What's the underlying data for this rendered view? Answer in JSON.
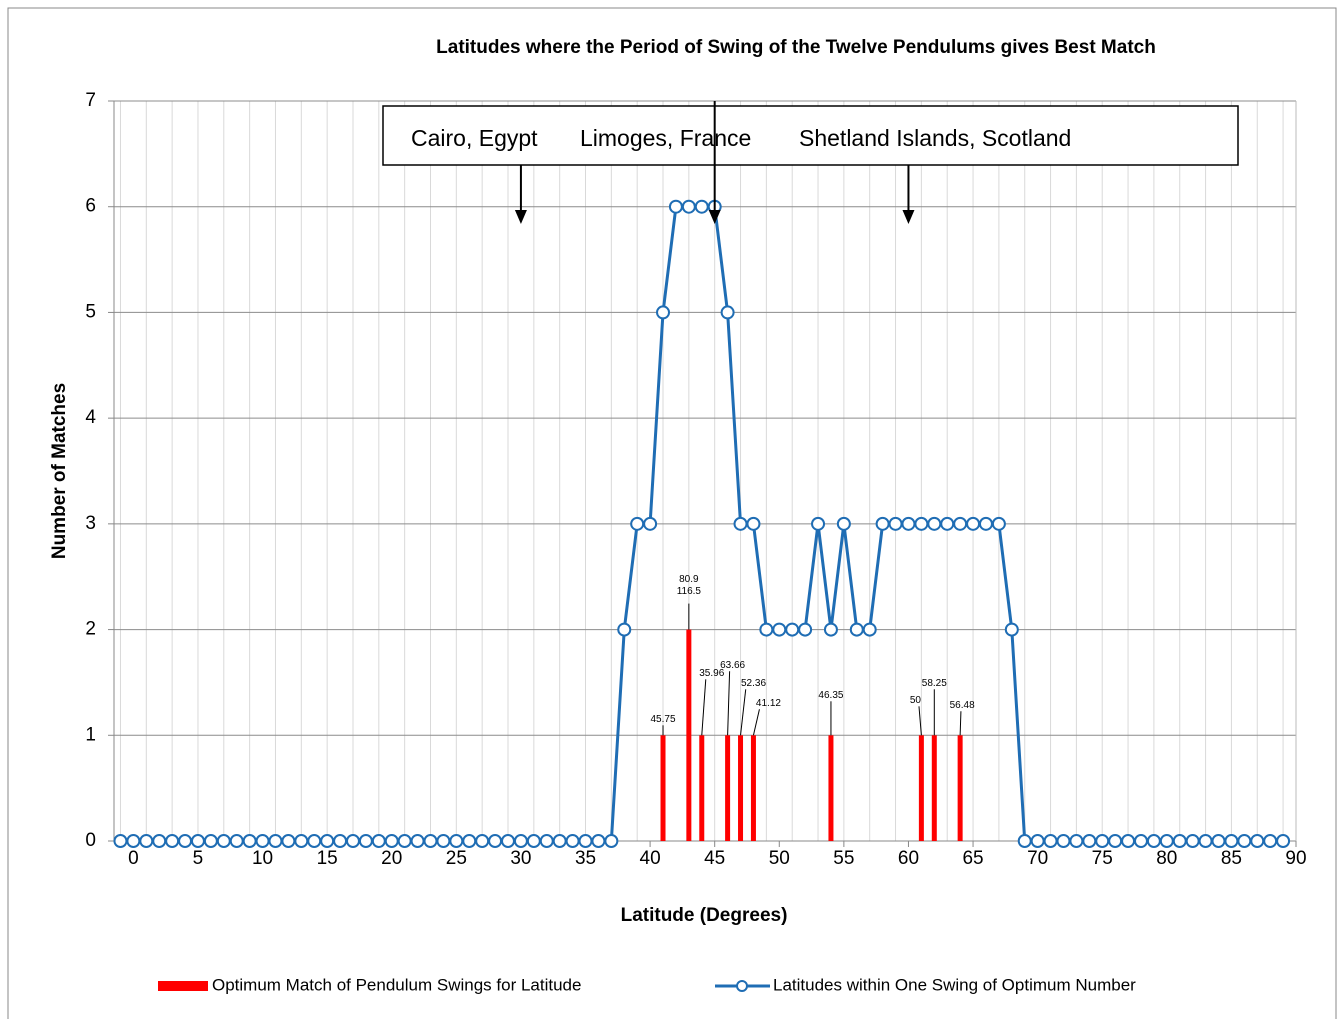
{
  "chart_data": {
    "type": "line",
    "title": "Latitudes where the Period of Swing of the Twelve Pendulums gives Best Match",
    "x_label": "Latitude (Degrees)",
    "y_label": "Number of Matches",
    "xlim": [
      -1.5,
      90
    ],
    "ylim": [
      0,
      7
    ],
    "xticks": [
      0,
      5,
      10,
      15,
      20,
      25,
      30,
      35,
      40,
      45,
      50,
      55,
      60,
      65,
      70,
      75,
      80,
      85,
      90
    ],
    "yticks": [
      0,
      1,
      2,
      3,
      4,
      5,
      6,
      7
    ],
    "grid": true,
    "x_minor_grid": {
      "start": -1,
      "step": 2
    },
    "legend": "bottom",
    "series": [
      {
        "name": "Optimum Match of Pendulum Swings for Latitude",
        "type": "bar",
        "color": "#ff0000",
        "x": [
          41,
          43,
          44,
          46,
          47,
          48,
          54,
          61,
          62,
          64
        ],
        "values": [
          1,
          2,
          1,
          1,
          1,
          1,
          1,
          1,
          1,
          1
        ],
        "bar_labels": [
          [
            "45.75"
          ],
          [
            "80.9",
            "116.5"
          ],
          [
            "35.96"
          ],
          [
            "63.66"
          ],
          [
            "52.36"
          ],
          [
            "41.12"
          ],
          [
            "46.35"
          ],
          [
            "50"
          ],
          [
            "58.25"
          ],
          [
            "56.48"
          ]
        ]
      },
      {
        "name": "Latitudes within One Swing of Optimum Number",
        "type": "line",
        "color": "#1f6db4",
        "x": [
          -1,
          0,
          1,
          2,
          3,
          4,
          5,
          6,
          7,
          8,
          9,
          10,
          11,
          12,
          13,
          14,
          15,
          16,
          17,
          18,
          19,
          20,
          21,
          22,
          23,
          24,
          25,
          26,
          27,
          28,
          29,
          30,
          31,
          32,
          33,
          34,
          35,
          36,
          37,
          38,
          39,
          40,
          41,
          42,
          43,
          44,
          45,
          46,
          47,
          48,
          49,
          50,
          51,
          52,
          53,
          54,
          55,
          56,
          57,
          58,
          59,
          60,
          61,
          62,
          63,
          64,
          65,
          66,
          67,
          68,
          69,
          70,
          71,
          72,
          73,
          74,
          75,
          76,
          77,
          78,
          79,
          80,
          81,
          82,
          83,
          84,
          85,
          86,
          87,
          88,
          89
        ],
        "values": [
          0,
          0,
          0,
          0,
          0,
          0,
          0,
          0,
          0,
          0,
          0,
          0,
          0,
          0,
          0,
          0,
          0,
          0,
          0,
          0,
          0,
          0,
          0,
          0,
          0,
          0,
          0,
          0,
          0,
          0,
          0,
          0,
          0,
          0,
          0,
          0,
          0,
          0,
          0,
          2,
          3,
          3,
          5,
          6,
          6,
          6,
          6,
          5,
          3,
          3,
          2,
          2,
          2,
          2,
          3,
          2,
          3,
          2,
          2,
          3,
          3,
          3,
          3,
          3,
          3,
          3,
          3,
          3,
          3,
          2,
          0,
          0,
          0,
          0,
          0,
          0,
          0,
          0,
          0,
          0,
          0,
          0,
          0,
          0,
          0,
          0,
          0,
          0,
          0,
          0,
          0
        ]
      }
    ],
    "annotations": [
      {
        "text": "Cairo, Egypt",
        "x": 30
      },
      {
        "text": "Limoges, France",
        "x": 45
      },
      {
        "text": "Shetland Islands, Scotland",
        "x": 60
      }
    ]
  }
}
